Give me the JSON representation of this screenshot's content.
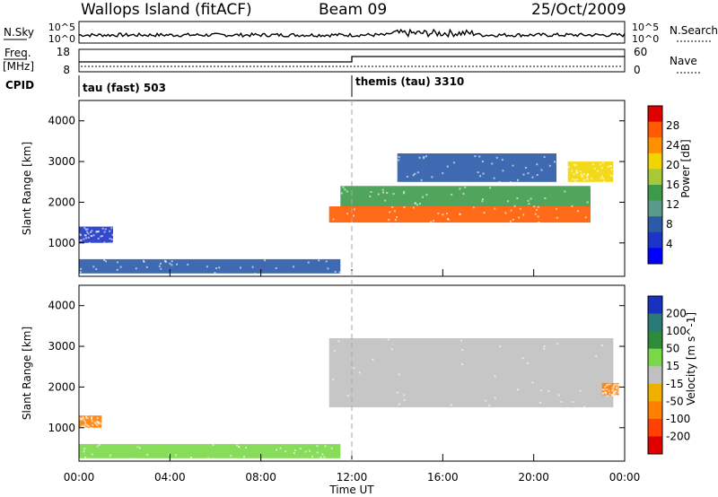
{
  "header": {
    "title": "Wallops Island (fitACF)",
    "beam": "Beam 09",
    "date": "25/Oct/2009"
  },
  "top_panels": {
    "nsky_label": "N.Sky",
    "nsky_ticks": [
      "10^5",
      "10^0"
    ],
    "nsearch_label": "N.Search",
    "freq_label": "Freq.",
    "freq_unit": "[MHz]",
    "freq_ticks": [
      "18",
      "8"
    ],
    "nave_label": "Nave",
    "nave_ticks": [
      "60",
      "0"
    ],
    "cpid_label": "CPID",
    "cpid_modes": [
      "tau (fast) 503",
      "themis (tau) 3310"
    ]
  },
  "axes": {
    "ylabel": "Slant Range [km]",
    "xlabel": "Time UT",
    "yticks": [
      "1000",
      "2000",
      "3000",
      "4000"
    ],
    "xticks": [
      "00:00",
      "04:00",
      "08:00",
      "12:00",
      "16:00",
      "20:00",
      "00:00"
    ]
  },
  "power_scale": {
    "label": "Power [dB]",
    "ticks": [
      "28",
      "24",
      "20",
      "16",
      "12",
      "8",
      "4"
    ],
    "colors": [
      "#e00000",
      "#ff5a00",
      "#ff9000",
      "#f2d500",
      "#a8c838",
      "#3d9a4a",
      "#5a9a8a",
      "#2a5aa8",
      "#1c34c8",
      "#0000ff"
    ]
  },
  "velocity_scale": {
    "label": "Velocity [m s^-1]",
    "ticks": [
      "200",
      "100",
      "50",
      "15",
      "-15",
      "-50",
      "-100",
      "-200"
    ],
    "colors": [
      "#1a30c0",
      "#2a7a7a",
      "#2e8b3a",
      "#7ad848",
      "#c0c0c0",
      "#f0b000",
      "#ff8000",
      "#ff4000",
      "#e00000"
    ]
  },
  "chart_data": {
    "type": "heatmap",
    "title": "Wallops Island (fitACF)",
    "xlabel": "Time UT",
    "ylabel": "Slant Range [km]",
    "xlim": [
      "00:00",
      "00:00"
    ],
    "ylim": [
      180,
      4500
    ],
    "panels": [
      {
        "name": "Power",
        "colorbar_label": "Power [dB]",
        "colorbar_range": [
          0,
          32
        ],
        "features": [
          {
            "time_range": [
              "00:00",
              "11:30"
            ],
            "range_km": [
              250,
              600
            ],
            "value_db": 8
          },
          {
            "time_range": [
              "11:00",
              "22:30"
            ],
            "range_km": [
              1500,
              1900
            ],
            "value_db": 28
          },
          {
            "time_range": [
              "11:30",
              "22:30"
            ],
            "range_km": [
              1900,
              2400
            ],
            "value_db": 16
          },
          {
            "time_range": [
              "14:00",
              "21:00"
            ],
            "range_km": [
              2500,
              3200
            ],
            "value_db": 8
          },
          {
            "time_range": [
              "21:30",
              "23:30"
            ],
            "range_km": [
              2500,
              3000
            ],
            "value_db": 22
          },
          {
            "time_range": [
              "00:00",
              "01:30"
            ],
            "range_km": [
              1000,
              1400
            ],
            "value_db": 6
          }
        ]
      },
      {
        "name": "Velocity",
        "colorbar_label": "Velocity [m s^-1]",
        "colorbar_range": [
          -250,
          250
        ],
        "features": [
          {
            "time_range": [
              "00:00",
              "11:30"
            ],
            "range_km": [
              250,
              600
            ],
            "value_ms": 30
          },
          {
            "time_range": [
              "11:00",
              "23:30"
            ],
            "range_km": [
              1500,
              3200
            ],
            "value_ms": 0
          },
          {
            "time_range": [
              "00:00",
              "01:00"
            ],
            "range_km": [
              1000,
              1300
            ],
            "value_ms": -80
          },
          {
            "time_range": [
              "23:00",
              "23:45"
            ],
            "range_km": [
              1800,
              2100
            ],
            "value_ms": -60
          }
        ]
      }
    ],
    "mode_change_time": "12:00"
  }
}
